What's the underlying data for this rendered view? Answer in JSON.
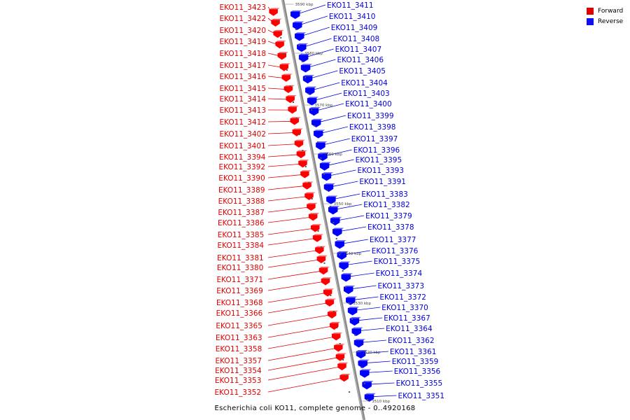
{
  "legend": {
    "forward_label": "Forward",
    "reverse_label": "Reverse",
    "forward_color": "#ff0000",
    "reverse_color": "#0000ff"
  },
  "caption": "Escherichia coli KO11, complete genome - 0..4920168",
  "axis": {
    "ticks": [
      "3590 kbp",
      "3580 kbp",
      "3570 kbp",
      "3560 kbp",
      "3550 kbp",
      "3540 kbp",
      "3530 kbp",
      "3520 kbp",
      "3510 kbp"
    ]
  },
  "genes": {
    "forward": [
      "EKO11_3423",
      "EKO11_3422",
      "EKO11_3420",
      "EKO11_3419",
      "EKO11_3418",
      "EKO11_3417",
      "EKO11_3416",
      "EKO11_3415",
      "EKO11_3414",
      "EKO11_3413",
      "EKO11_3412",
      "EKO11_3402",
      "EKO11_3401",
      "EKO11_3394",
      "EKO11_3392",
      "EKO11_3390",
      "EKO11_3389",
      "EKO11_3388",
      "EKO11_3387",
      "EKO11_3386",
      "EKO11_3385",
      "EKO11_3384",
      "EKO11_3381",
      "EKO11_3380",
      "EKO11_3371",
      "EKO11_3369",
      "EKO11_3368",
      "EKO11_3366",
      "EKO11_3365",
      "EKO11_3363",
      "EKO11_3358",
      "EKO11_3357",
      "EKO11_3354",
      "EKO11_3353",
      "EKO11_3352"
    ],
    "reverse": [
      "EKO11_3411",
      "EKO11_3410",
      "EKO11_3409",
      "EKO11_3408",
      "EKO11_3407",
      "EKO11_3406",
      "EKO11_3405",
      "EKO11_3404",
      "EKO11_3403",
      "EKO11_3400",
      "EKO11_3399",
      "EKO11_3398",
      "EKO11_3397",
      "EKO11_3396",
      "EKO11_3395",
      "EKO11_3393",
      "EKO11_3391",
      "EKO11_3383",
      "EKO11_3382",
      "EKO11_3379",
      "EKO11_3378",
      "EKO11_3377",
      "EKO11_3376",
      "EKO11_3375",
      "EKO11_3374",
      "EKO11_3373",
      "EKO11_3372",
      "EKO11_3370",
      "EKO11_3367",
      "EKO11_3364",
      "EKO11_3362",
      "EKO11_3361",
      "EKO11_3359",
      "EKO11_3356",
      "EKO11_3355",
      "EKO11_3351"
    ]
  }
}
